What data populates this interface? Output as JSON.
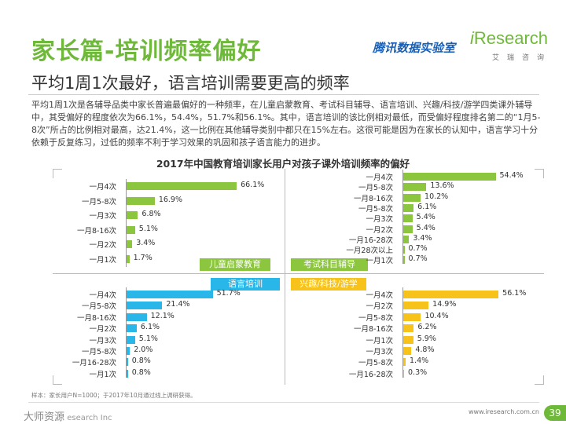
{
  "header": {
    "title": "家长篇-培训频率偏好",
    "subtitle": "平均1周1次最好，语言培训需要更高的频率",
    "logo_tencent": "腾讯数据实验室",
    "logo_ir_i": "i",
    "logo_ir_rest": "Research",
    "logo_ir_sub": "艾瑞咨询"
  },
  "body_text": "平均1周1次是各辅导品类中家长普遍最偏好的一种频率，在儿童启蒙教育、考试科目辅导、语言培训、兴趣/科技/游学四类课外辅导中，其受偏好的程度依次为66.1%，54.4%，51.7%和56.1%。其中，语言培训的该比例相对最低，而受偏好程度排名第二的“1月5-8次”所占的比例相对最高，达21.4%，这一比例在其他辅导类别中都只在15%左右。这很可能是因为在家长的认知中，语言学习十分依赖于反复练习，过低的频率不利于学习效果的巩固和孩子语言能力的进步。",
  "chart_title": "2017年中国教育培训家长用户对孩子课外培训频率的偏好",
  "colors": {
    "green": "#8cc63f",
    "blue": "#29b6e8",
    "yellow": "#f7c31a",
    "title_green": "#6fb93a"
  },
  "chart_data": [
    {
      "type": "bar",
      "title": "儿童启蒙教育",
      "color": "#8cc63f",
      "categories": [
        "一月4次",
        "一月5-8次",
        "一月3次",
        "一月8-16次",
        "一月2次",
        "一月1次"
      ],
      "values": [
        66.1,
        16.9,
        6.8,
        5.1,
        3.4,
        1.7
      ],
      "value_labels": [
        "66.1%",
        "16.9%",
        "6.8%",
        "5.1%",
        "3.4%",
        "1.7%"
      ]
    },
    {
      "type": "bar",
      "title": "考试科目辅导",
      "color": "#8cc63f",
      "categories": [
        "一月4次",
        "一月5-8次",
        "一月8-16次",
        "一月5-8次",
        "一月3次",
        "一月2次",
        "一月16-28次",
        "一月28次以上",
        "一月1次"
      ],
      "values": [
        54.4,
        13.6,
        10.2,
        6.1,
        5.4,
        5.4,
        3.4,
        0.7,
        0.7
      ],
      "value_labels": [
        "54.4%",
        "13.6%",
        "10.2%",
        "6.1%",
        "5.4%",
        "5.4%",
        "3.4%",
        "0.7%",
        "0.7%"
      ]
    },
    {
      "type": "bar",
      "title": "语言培训",
      "color": "#29b6e8",
      "categories": [
        "一月4次",
        "一月5-8次",
        "一月8-16次",
        "一月2次",
        "一月3次",
        "一月5-8次",
        "一月16-28次",
        "一月1次"
      ],
      "values": [
        51.7,
        21.4,
        12.1,
        6.1,
        5.1,
        2.0,
        0.8,
        0.8
      ],
      "value_labels": [
        "51.7%",
        "21.4%",
        "12.1%",
        "6.1%",
        "5.1%",
        "2.0%",
        "0.8%",
        "0.8%"
      ]
    },
    {
      "type": "bar",
      "title": "兴趣/科技/游学",
      "color": "#f7c31a",
      "categories": [
        "一月4次",
        "一月2次",
        "一月5-8次",
        "一月8-16次",
        "一月1次",
        "一月3次",
        "一月5-8次",
        "一月16-28次"
      ],
      "values": [
        56.1,
        14.9,
        10.4,
        6.2,
        5.9,
        4.8,
        1.4,
        0.3
      ],
      "value_labels": [
        "56.1%",
        "14.9%",
        "10.4%",
        "6.2%",
        "5.9%",
        "4.8%",
        "1.4%",
        "0.3%"
      ]
    }
  ],
  "footnote": "样本：家长用户N=1000；于2017年10月通过线上调研获得。",
  "footer_left_watermark": "大师资源",
  "footer_left_text": "esearch Inc",
  "footer_right": "www.iresearch.com.cn",
  "page_number": "39"
}
